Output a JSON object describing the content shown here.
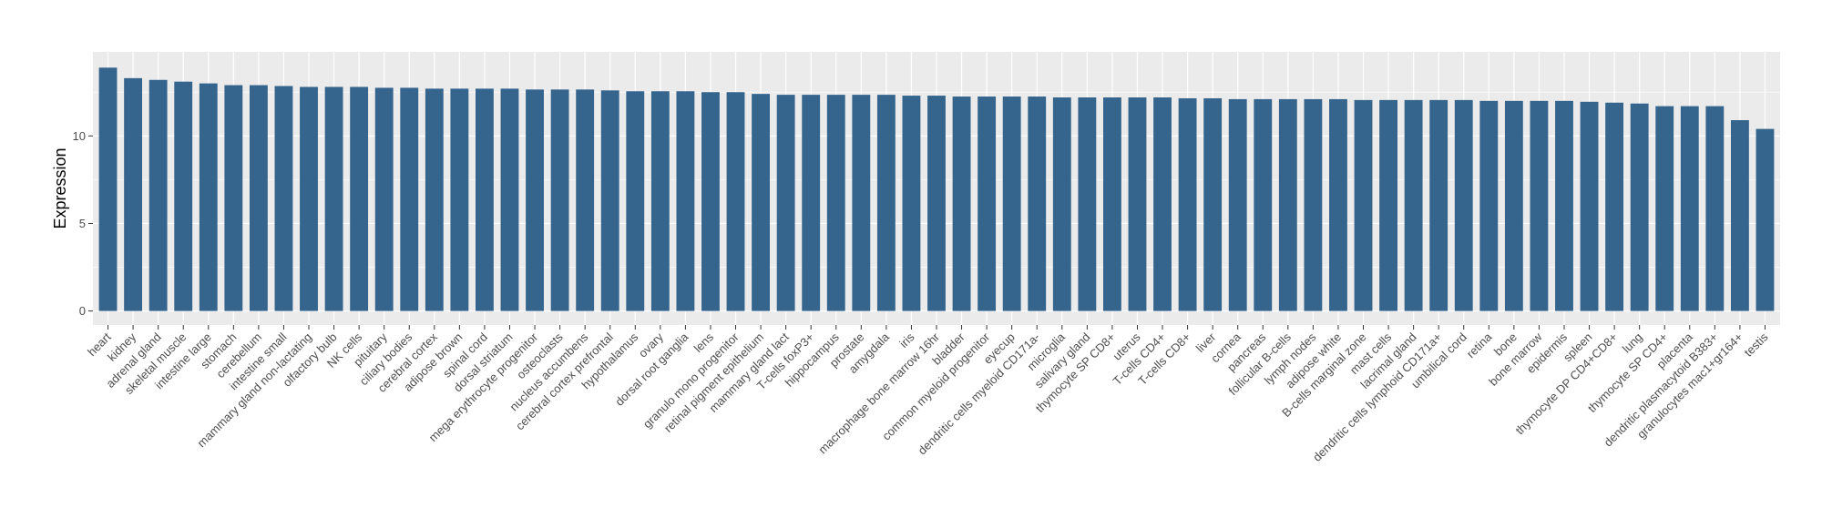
{
  "chart_data": {
    "type": "bar",
    "title": "",
    "xlabel": "",
    "ylabel": "Expression",
    "ylim": [
      -0.8,
      14.8
    ],
    "yticks": [
      0,
      5,
      10
    ],
    "grid": true,
    "legend": "none",
    "colors": {
      "bar": "#35648d",
      "panel": "#ebebeb",
      "grid_major": "#ffffff"
    },
    "categories": [
      "heart",
      "kidney",
      "adrenal gland",
      "skeletal muscle",
      "intestine large",
      "stomach",
      "cerebellum",
      "intestine small",
      "mammary gland non-lactating",
      "olfactory bulb",
      "NK cells",
      "pituitary",
      "ciliary bodies",
      "cerebral cortex",
      "adipose brown",
      "spinal cord",
      "dorsal striatum",
      "mega erythrocyte progenitor",
      "osteoclasts",
      "nucleus accumbens",
      "cerebral cortex prefrontal",
      "hypothalamus",
      "ovary",
      "dorsal root ganglia",
      "lens",
      "granulo mono progenitor",
      "retinal pigment epithelium",
      "mammary gland  lact",
      "T-cells foxP3+",
      "hippocampus",
      "prostate",
      "amygdala",
      "iris",
      "macrophage bone marrow 16hr",
      "bladder",
      "common myeloid progenitor",
      "eyecup",
      "dendritic cells myeloid CD171a-",
      "microglia",
      "salivary gland",
      "thymocyte SP CD8+",
      "uterus",
      "T-cells CD4+",
      "T-cells CD8+",
      "liver",
      "cornea",
      "pancreas",
      "follicular B-cells",
      "lymph nodes",
      "adipose white",
      "B-cells marginal zone",
      "mast cells",
      "lacrimal gland",
      "dendritic cells lymphoid CD171a+",
      "umbilical cord",
      "retina",
      "bone",
      "bone marrow",
      "epidermis",
      "spleen",
      "thymocyte DP CD4+CD8+",
      "lung",
      "thymocyte SP CD4+",
      "placenta",
      "dendritic plasmacytoid B383+",
      "granulocytes mac1+gr164+",
      "testis"
    ],
    "values": [
      13.9,
      13.3,
      13.2,
      13.1,
      13.0,
      12.9,
      12.9,
      12.85,
      12.8,
      12.8,
      12.8,
      12.75,
      12.75,
      12.7,
      12.7,
      12.7,
      12.7,
      12.65,
      12.65,
      12.65,
      12.6,
      12.55,
      12.55,
      12.55,
      12.5,
      12.5,
      12.4,
      12.35,
      12.35,
      12.35,
      12.35,
      12.35,
      12.3,
      12.3,
      12.25,
      12.25,
      12.25,
      12.25,
      12.2,
      12.2,
      12.2,
      12.2,
      12.2,
      12.15,
      12.15,
      12.1,
      12.1,
      12.1,
      12.1,
      12.1,
      12.05,
      12.05,
      12.05,
      12.05,
      12.05,
      12.0,
      12.0,
      12.0,
      12.0,
      11.95,
      11.9,
      11.85,
      11.7,
      11.7,
      11.7,
      10.9,
      10.4
    ]
  }
}
